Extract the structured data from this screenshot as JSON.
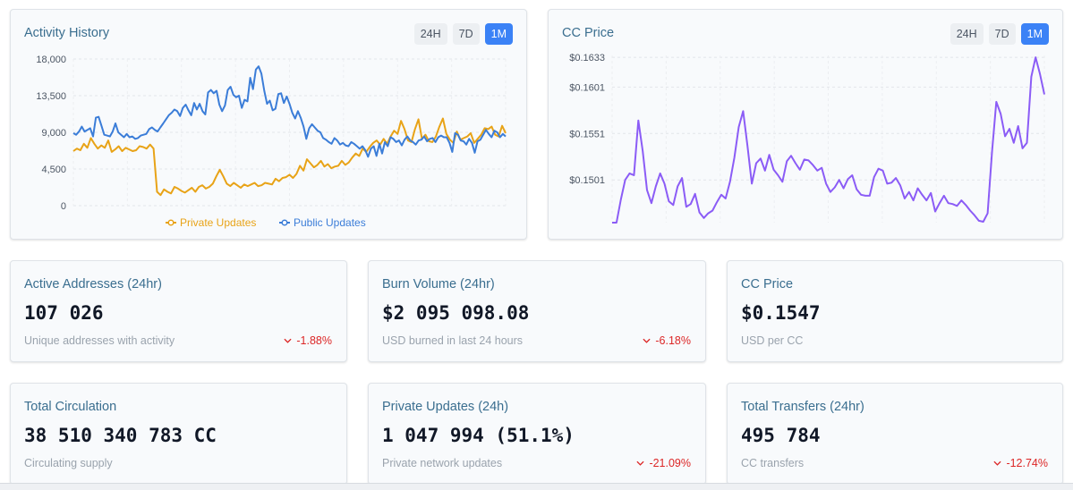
{
  "activity": {
    "title": "Activity History",
    "ranges": [
      "24H",
      "7D",
      "1M"
    ],
    "active_range": "1M"
  },
  "price": {
    "title": "CC Price",
    "ranges": [
      "24H",
      "7D",
      "1M"
    ],
    "active_range": "1M"
  },
  "chart_data": [
    {
      "type": "line",
      "title": "Activity History",
      "ylim": [
        0,
        18000
      ],
      "yticks": [
        "18,000",
        "13,500",
        "9,000",
        "4,500",
        "0"
      ],
      "grid": true,
      "legend": "bottom-center",
      "series": [
        {
          "name": "Private Updates",
          "color": "#e8a317",
          "values": [
            6700,
            7000,
            6800,
            7600,
            7100,
            8300,
            7600,
            7000,
            7400,
            7100,
            8000,
            6600,
            6900,
            7300,
            6700,
            7100,
            6900,
            6700,
            6800,
            7300,
            7200,
            7000,
            7500,
            7000,
            1700,
            1300,
            2000,
            1700,
            1500,
            2300,
            2100,
            1800,
            1600,
            1900,
            2200,
            1700,
            2300,
            2500,
            2100,
            2300,
            2700,
            3600,
            4400,
            3600,
            2700,
            2400,
            2800,
            2500,
            2200,
            2600,
            2400,
            2600,
            2800,
            2400,
            2500,
            2800,
            2700,
            2600,
            3300,
            3000,
            3400,
            3500,
            3800,
            3400,
            3900,
            4900,
            4300,
            5700,
            5200,
            4700,
            5000,
            5500,
            4800,
            5100,
            4600,
            4800,
            4900,
            5500,
            5000,
            5300,
            5900,
            6400,
            6100,
            7000,
            6600,
            7200,
            7700,
            8000,
            7500,
            8200,
            7600,
            8500,
            9200,
            8800,
            10400,
            9400,
            8000,
            7800,
            9400,
            10600,
            8200,
            8700,
            7900,
            7800,
            8500,
            9700,
            10700,
            8800,
            8100,
            7700,
            9100,
            8100,
            8300,
            8500,
            8900,
            7700,
            8200,
            8700,
            9500,
            9400,
            9700,
            8700,
            8500,
            9800,
            8900
          ]
        },
        {
          "name": "Public Updates",
          "color": "#3b7dd8",
          "values": [
            8900,
            8700,
            9100,
            9700,
            9100,
            9300,
            9500,
            8500,
            10800,
            10900,
            9800,
            8700,
            8600,
            8500,
            9100,
            10100,
            9000,
            8700,
            8400,
            8800,
            8400,
            8500,
            8200,
            8300,
            8600,
            8700,
            8800,
            9400,
            9600,
            9300,
            9100,
            9600,
            10100,
            10600,
            11100,
            11400,
            11800,
            11600,
            11000,
            12000,
            12400,
            11700,
            11100,
            12600,
            11800,
            12500,
            11600,
            11200,
            13900,
            14200,
            13800,
            14100,
            12400,
            11600,
            12300,
            14200,
            14600,
            13600,
            13300,
            13500,
            12000,
            13000,
            12800,
            15700,
            14300,
            16700,
            17100,
            16200,
            14100,
            12500,
            12900,
            11700,
            11900,
            13700,
            13800,
            12600,
            13400,
            12500,
            11400,
            10700,
            11600,
            10800,
            9700,
            8200,
            9500,
            10000,
            9600,
            9200,
            9000,
            8300,
            8100,
            7800,
            7600,
            8300,
            8000,
            7500,
            7700,
            7400,
            7300,
            7800,
            7600,
            7300,
            7000,
            7300,
            6800,
            6000,
            7000,
            7300,
            6100,
            7600,
            6400,
            7800,
            7300,
            8400,
            8200,
            7800,
            8000,
            7400,
            8100,
            8500,
            8000,
            7800,
            7500,
            8000,
            8100,
            8500,
            7900,
            8200,
            8300,
            7800,
            8400,
            8600,
            8400,
            8400,
            7700,
            6600,
            8900,
            8700,
            8000,
            7900,
            7500,
            8200,
            7700,
            6500,
            7900,
            8100,
            8700,
            9300,
            8800,
            8400,
            9200,
            9000,
            8400,
            8800,
            8500
          ]
        }
      ]
    },
    {
      "type": "line",
      "title": "CC Price",
      "ylim": [
        0.1455,
        0.1635
      ],
      "yticks": [
        "$0.1633",
        "$0.1601",
        "$0.1551",
        "$0.1501"
      ],
      "grid": true,
      "series": [
        {
          "color": "#8b5cf6",
          "values": [
            0.1455,
            0.1455,
            0.148,
            0.1501,
            0.1508,
            0.1506,
            0.1565,
            0.1532,
            0.149,
            0.1476,
            0.1494,
            0.1508,
            0.1497,
            0.1478,
            0.1474,
            0.1494,
            0.1503,
            0.1472,
            0.1475,
            0.1486,
            0.1466,
            0.146,
            0.1465,
            0.1468,
            0.1477,
            0.1485,
            0.1481,
            0.1499,
            0.1525,
            0.1558,
            0.1575,
            0.1538,
            0.1497,
            0.1519,
            0.1524,
            0.1511,
            0.1528,
            0.1512,
            0.1506,
            0.1499,
            0.1521,
            0.1527,
            0.1519,
            0.1512,
            0.1523,
            0.1522,
            0.1517,
            0.1511,
            0.1514,
            0.1497,
            0.1488,
            0.1493,
            0.1501,
            0.1492,
            0.1502,
            0.1506,
            0.1491,
            0.1485,
            0.1484,
            0.1484,
            0.1504,
            0.1513,
            0.1511,
            0.1497,
            0.1498,
            0.1503,
            0.1495,
            0.1481,
            0.1488,
            0.1479,
            0.1492,
            0.1485,
            0.1479,
            0.1487,
            0.1467,
            0.1476,
            0.1484,
            0.1476,
            0.1475,
            0.1473,
            0.1479,
            0.1474,
            0.1468,
            0.1463,
            0.1457,
            0.1456,
            0.1465,
            0.1531,
            0.1585,
            0.1572,
            0.1548,
            0.1556,
            0.1541,
            0.1559,
            0.1535,
            0.1541,
            0.1612,
            0.1633,
            0.1615,
            0.1593
          ]
        }
      ]
    }
  ],
  "stats": [
    {
      "title": "Active Addresses (24hr)",
      "value": "107 026",
      "sub": "Unique addresses with activity",
      "change": "-1.88%"
    },
    {
      "title": "Burn Volume (24hr)",
      "value": "$2 095 098.08",
      "sub": "USD burned in last 24 hours",
      "change": "-6.18%"
    },
    {
      "title": "CC Price",
      "value": "$0.1547",
      "sub": "USD per CC",
      "change": ""
    },
    {
      "title": "Total Circulation",
      "value": "38 510 340 783 CC",
      "sub": "Circulating supply",
      "change": ""
    },
    {
      "title": "Private Updates (24h)",
      "value": "1 047 994 (51.1%)",
      "sub": "Private network updates",
      "change": "-21.09%"
    },
    {
      "title": "Total Transfers (24hr)",
      "value": "495 784",
      "sub": "CC transfers",
      "change": "-12.74%"
    }
  ],
  "icons": {
    "change_down": "chevron-down-icon"
  },
  "colors": {
    "accent": "#3b82f6",
    "title": "#3a6e8f",
    "negative": "#dc2626"
  }
}
